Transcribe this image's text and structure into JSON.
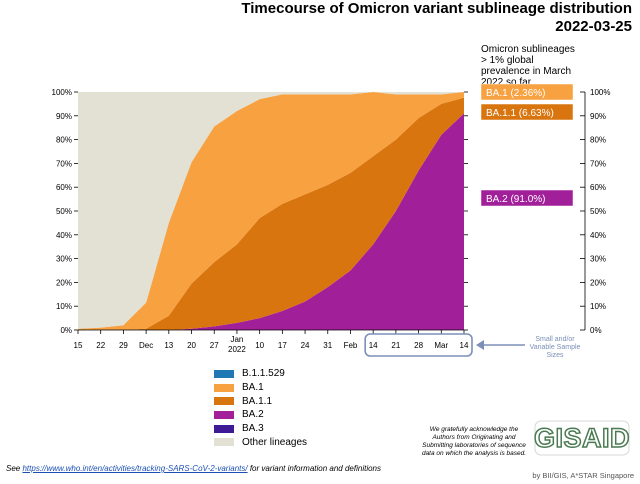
{
  "title_line1": "Timecourse of Omicron variant sublineage distribution",
  "title_line2": "2022-03-25",
  "subtitle": "Omicron sublineages > 1% global prevalence in March 2022 so far",
  "note": "Small and/or Variable Sample Sizes",
  "acknowledgement": "We gratefully acknowledge the Authors from Originating and Submitting laboratories of sequence data on which the analysis is based.",
  "logo_text": "GISAID",
  "credit": "by BII/GIS, A*STAR Singapore",
  "footer": {
    "prefix": "See ",
    "link": "https://www.who.int/en/activities/tracking-SARS-CoV-2-variants/",
    "suffix": " for variant information and definitions"
  },
  "colors": {
    "B.1.1.529": "#1f77b4",
    "BA.1": "#f7a140",
    "BA.1.1": "#d9750f",
    "BA.2": "#a21f9a",
    "BA.3": "#3f1a96",
    "Other lineages": "#e3e1d3"
  },
  "chart_data": {
    "type": "area",
    "stacked": true,
    "normalized": true,
    "x": [
      "2021-11-15",
      "2021-11-22",
      "2021-11-29",
      "2021-12-06",
      "2021-12-13",
      "2021-12-20",
      "2021-12-27",
      "2022-01-03",
      "2022-01-10",
      "2022-01-17",
      "2022-01-24",
      "2022-01-31",
      "2022-02-07",
      "2022-02-14",
      "2022-02-21",
      "2022-02-28",
      "2022-03-07",
      "2022-03-14"
    ],
    "x_tick_labels": [
      "15",
      "22",
      "29",
      "Dec",
      "13",
      "20",
      "27",
      "Jan\n2022",
      "10",
      "17",
      "24",
      "31",
      "Feb",
      "14",
      "21",
      "28",
      "Mar",
      "14"
    ],
    "y_tick_labels": [
      "0%",
      "10%",
      "20%",
      "30%",
      "40%",
      "50%",
      "60%",
      "70%",
      "80%",
      "90%",
      "100%"
    ],
    "ylim": [
      0,
      100
    ],
    "series": [
      {
        "name": "BA.2",
        "values": [
          0,
          0,
          0,
          0,
          0,
          0.5,
          1.5,
          3,
          5,
          8,
          12,
          18,
          25,
          36,
          50,
          67,
          82,
          91
        ]
      },
      {
        "name": "BA.1.1",
        "values": [
          0,
          0,
          0,
          0.5,
          6,
          19,
          27,
          33,
          42,
          45,
          45,
          43,
          41,
          37,
          30,
          22,
          13,
          6.63
        ]
      },
      {
        "name": "BA.1",
        "values": [
          0.5,
          1,
          2,
          11,
          39,
          51,
          57,
          56,
          50,
          46,
          42,
          38,
          33,
          27,
          19,
          10,
          4,
          2.36
        ]
      },
      {
        "name": "BA.3",
        "values": [
          0,
          0,
          0,
          0,
          0,
          0,
          0,
          0,
          0,
          0,
          0,
          0,
          0,
          0,
          0,
          0,
          0,
          0
        ]
      },
      {
        "name": "B.1.1.529",
        "values": [
          0,
          0,
          0,
          0,
          0,
          0,
          0,
          0,
          0,
          0,
          0,
          0,
          0,
          0,
          0,
          0,
          0,
          0
        ]
      },
      {
        "name": "Other lineages",
        "values": [
          99.5,
          99,
          98,
          88.5,
          55,
          29.5,
          14.5,
          8,
          3,
          1,
          1,
          1,
          1,
          0,
          1,
          1,
          1,
          0.01
        ]
      }
    ],
    "legend": [
      "B.1.1.529",
      "BA.1",
      "BA.1.1",
      "BA.2",
      "BA.3",
      "Other lineages"
    ],
    "end_labels": [
      {
        "series": "BA.1",
        "text": "BA.1 (2.36%)"
      },
      {
        "series": "BA.1.1",
        "text": "BA.1.1 (6.63%)"
      },
      {
        "series": "BA.2",
        "text": "BA.2 (91.0%)"
      }
    ],
    "grid": true,
    "highlighted_range": [
      "2022-02-14",
      "2022-03-14"
    ]
  }
}
